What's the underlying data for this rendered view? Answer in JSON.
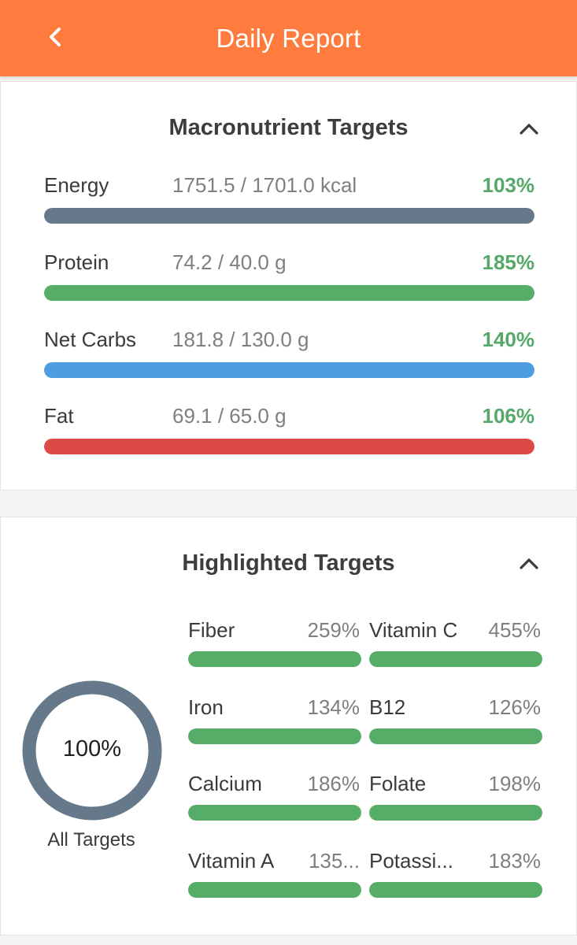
{
  "header": {
    "title": "Daily Report",
    "back_icon": "chevron-left-icon",
    "background": "#ff7b3e"
  },
  "macro": {
    "title": "Macronutrient Targets",
    "collapse_icon": "chevron-up-icon",
    "rows": [
      {
        "name": "Energy",
        "value": "1751.5 / 1701.0 kcal",
        "pct": "103%",
        "fill": 1.0,
        "color": "#66798a"
      },
      {
        "name": "Protein",
        "value": "74.2 / 40.0 g",
        "pct": "185%",
        "fill": 1.0,
        "color": "#55ad67"
      },
      {
        "name": "Net Carbs",
        "value": "181.8 / 130.0 g",
        "pct": "140%",
        "fill": 1.0,
        "color": "#4d9de0"
      },
      {
        "name": "Fat",
        "value": "69.1 / 65.0 g",
        "pct": "106%",
        "fill": 1.0,
        "color": "#db4a45"
      }
    ],
    "pct_color": "#55a868"
  },
  "highlight": {
    "title": "Highlighted Targets",
    "collapse_icon": "chevron-up-icon",
    "overall": {
      "pct": "100%",
      "label": "All Targets",
      "fill": 1.0,
      "color": "#66798a"
    },
    "items": [
      {
        "name": "Fiber",
        "pct": "259%",
        "fill": 1.0
      },
      {
        "name": "Vitamin C",
        "pct": "455%",
        "fill": 1.0
      },
      {
        "name": "Iron",
        "pct": "134%",
        "fill": 1.0
      },
      {
        "name": "B12",
        "pct": "126%",
        "fill": 1.0
      },
      {
        "name": "Calcium",
        "pct": "186%",
        "fill": 1.0
      },
      {
        "name": "Folate",
        "pct": "198%",
        "fill": 1.0
      },
      {
        "name": "Vitamin A",
        "pct": "135...",
        "fill": 1.0
      },
      {
        "name": "Potassi...",
        "pct": "183%",
        "fill": 1.0
      }
    ],
    "bar_color": "#55ad67"
  }
}
